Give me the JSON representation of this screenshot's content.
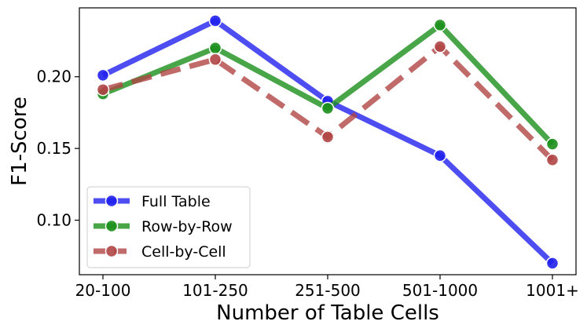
{
  "chart_data": {
    "type": "line",
    "xlabel": "Number of Table Cells",
    "ylabel": "F1-Score",
    "categories": [
      "20-100",
      "101-250",
      "251-500",
      "501-1000",
      "1001+"
    ],
    "ylim": [
      0.062,
      0.248
    ],
    "yticks": [
      0.1,
      0.15,
      0.2
    ],
    "ytick_labels": [
      "0.10",
      "0.15",
      "0.20"
    ],
    "grid": false,
    "legend_position": "lower-left",
    "series": [
      {
        "name": "Full Table",
        "values": [
          0.201,
          0.239,
          0.183,
          0.145,
          0.07
        ],
        "color": "#2020ee",
        "dash": "solid"
      },
      {
        "name": "Row-by-Row",
        "values": [
          0.188,
          0.22,
          0.178,
          0.236,
          0.153
        ],
        "color": "#1a8f1a",
        "dash": "solid"
      },
      {
        "name": "Cell-by-Cell",
        "values": [
          0.191,
          0.212,
          0.158,
          0.221,
          0.142
        ],
        "color": "#b04545",
        "dash": "dashed"
      }
    ]
  }
}
